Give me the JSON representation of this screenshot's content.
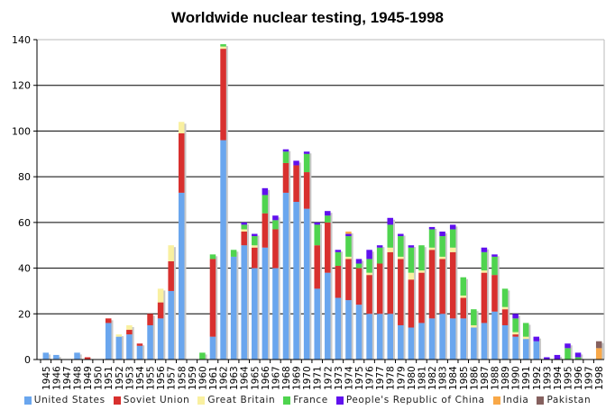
{
  "chart_data": {
    "type": "bar",
    "stacked": true,
    "title": "Worldwide nuclear testing, 1945-1998",
    "xlabel": "",
    "ylabel": "",
    "ylim": [
      0,
      140
    ],
    "yticks": [
      0,
      20,
      40,
      60,
      80,
      100,
      120,
      140
    ],
    "grid": true,
    "legend_position": "bottom",
    "categories": [
      "1945",
      "1946",
      "1947",
      "1948",
      "1949",
      "1950",
      "1951",
      "1952",
      "1953",
      "1954",
      "1955",
      "1956",
      "1957",
      "1958",
      "1959",
      "1960",
      "1961",
      "1962",
      "1963",
      "1964",
      "1965",
      "1966",
      "1967",
      "1968",
      "1969",
      "1970",
      "1971",
      "1972",
      "1973",
      "1974",
      "1975",
      "1976",
      "1977",
      "1978",
      "1979",
      "1980",
      "1981",
      "1982",
      "1983",
      "1984",
      "1985",
      "1986",
      "1987",
      "1988",
      "1989",
      "1990",
      "1991",
      "1992",
      "1993",
      "1994",
      "1995",
      "1996",
      "1997",
      "1998"
    ],
    "series": [
      {
        "name": "United States",
        "color": "#6aa6ee",
        "values": [
          3,
          2,
          0,
          3,
          0,
          0,
          16,
          10,
          11,
          6,
          15,
          18,
          30,
          73,
          0,
          0,
          10,
          96,
          45,
          50,
          40,
          49,
          40,
          73,
          69,
          66,
          31,
          38,
          27,
          26,
          24,
          20,
          20,
          20,
          15,
          14,
          16,
          18,
          20,
          18,
          18,
          14,
          16,
          21,
          15,
          10,
          9,
          8,
          0,
          0,
          0,
          0,
          0,
          0
        ]
      },
      {
        "name": "Soviet Union",
        "color": "#d8302e",
        "values": [
          0,
          0,
          0,
          0,
          1,
          0,
          2,
          0,
          2,
          1,
          5,
          7,
          13,
          26,
          0,
          0,
          34,
          40,
          0,
          6,
          9,
          15,
          17,
          13,
          16,
          16,
          19,
          22,
          14,
          18,
          16,
          17,
          22,
          27,
          29,
          21,
          22,
          30,
          24,
          29,
          9,
          0,
          22,
          16,
          7,
          1,
          0,
          0,
          0,
          0,
          0,
          0,
          0,
          0
        ]
      },
      {
        "name": "Great Britain",
        "color": "#f9f0a0",
        "values": [
          0,
          0,
          0,
          0,
          0,
          0,
          0,
          1,
          2,
          0,
          0,
          6,
          7,
          5,
          0,
          0,
          0,
          1,
          0,
          1,
          1,
          0,
          0,
          0,
          0,
          0,
          0,
          0,
          0,
          1,
          0,
          1,
          0,
          2,
          1,
          3,
          1,
          1,
          1,
          2,
          1,
          1,
          1,
          0,
          1,
          1,
          1,
          0,
          0,
          0,
          0,
          0,
          0,
          0
        ]
      },
      {
        "name": "France",
        "color": "#4fd44f",
        "values": [
          0,
          0,
          0,
          0,
          0,
          0,
          0,
          0,
          0,
          0,
          0,
          0,
          0,
          0,
          0,
          3,
          2,
          1,
          3,
          2,
          4,
          8,
          4,
          5,
          0,
          8,
          9,
          3,
          6,
          9,
          2,
          6,
          7,
          10,
          9,
          11,
          11,
          8,
          9,
          8,
          8,
          7,
          8,
          8,
          8,
          6,
          6,
          0,
          0,
          0,
          5,
          1,
          0,
          0
        ]
      },
      {
        "name": "People's Republic of China",
        "color": "#6010ee",
        "values": [
          0,
          0,
          0,
          0,
          0,
          0,
          0,
          0,
          0,
          0,
          0,
          0,
          0,
          0,
          0,
          0,
          0,
          0,
          0,
          1,
          1,
          3,
          2,
          1,
          2,
          1,
          1,
          2,
          1,
          1,
          2,
          4,
          1,
          3,
          1,
          1,
          0,
          1,
          2,
          2,
          0,
          0,
          2,
          1,
          0,
          2,
          0,
          2,
          1,
          2,
          2,
          2,
          0,
          0
        ]
      },
      {
        "name": "India",
        "color": "#f8a848",
        "values": [
          0,
          0,
          0,
          0,
          0,
          0,
          0,
          0,
          0,
          0,
          0,
          0,
          0,
          0,
          0,
          0,
          0,
          0,
          0,
          0,
          0,
          0,
          0,
          0,
          0,
          0,
          0,
          0,
          0,
          1,
          0,
          0,
          0,
          0,
          0,
          0,
          0,
          0,
          0,
          0,
          0,
          0,
          0,
          0,
          0,
          0,
          0,
          0,
          0,
          0,
          0,
          0,
          0,
          5
        ]
      },
      {
        "name": "Pakistan",
        "color": "#85605e",
        "values": [
          0,
          0,
          0,
          0,
          0,
          0,
          0,
          0,
          0,
          0,
          0,
          0,
          0,
          0,
          0,
          0,
          0,
          0,
          0,
          0,
          0,
          0,
          0,
          0,
          0,
          0,
          0,
          0,
          0,
          0,
          0,
          0,
          0,
          0,
          0,
          0,
          0,
          0,
          0,
          0,
          0,
          0,
          0,
          0,
          0,
          0,
          0,
          0,
          0,
          0,
          0,
          0,
          0,
          3
        ]
      }
    ]
  }
}
